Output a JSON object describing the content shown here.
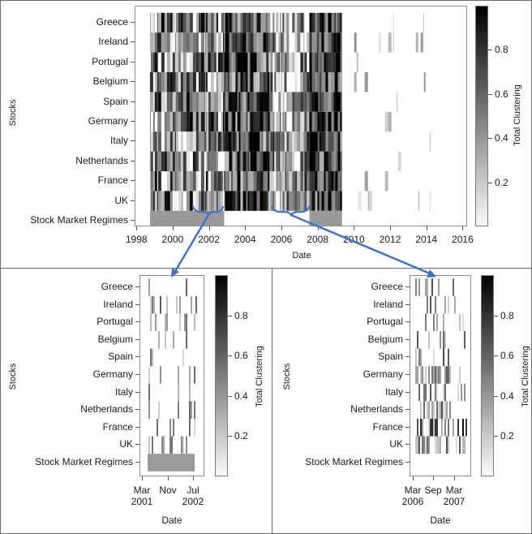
{
  "chart_data": [
    {
      "id": "main",
      "type": "heatmap",
      "title": "",
      "xlabel": "Date",
      "ylabel": "Stocks",
      "colorbar_label": "Total Clustering",
      "colorbar_ticks": [
        "0.8",
        "0.6",
        "0.4",
        "0.2"
      ],
      "colorbar_range": [
        0,
        1
      ],
      "xlim": [
        1998,
        2016
      ],
      "x_ticks": [
        "1998",
        "2000",
        "2002",
        "2004",
        "2006",
        "2008",
        "2010",
        "2012",
        "2014",
        "2016"
      ],
      "rows": [
        "Greece",
        "Ireland",
        "Portugal",
        "Belgium",
        "Spain",
        "Germany",
        "Italy",
        "Netherlands",
        "France",
        "UK",
        "Stock Market Regimes"
      ],
      "regimes": [
        {
          "start": 1998.7,
          "end": 2002.8,
          "value": 0.45
        },
        {
          "start": 2007.5,
          "end": 2009.3,
          "value": 0.45
        }
      ],
      "dense_periods": [
        {
          "start": 1998.7,
          "end": 2002.8,
          "intensity": 0.45
        },
        {
          "start": 2002.8,
          "end": 2005.3,
          "intensity": 0.7
        },
        {
          "start": 2005.3,
          "end": 2007.5,
          "intensity": 0.35
        },
        {
          "start": 2007.5,
          "end": 2009.3,
          "intensity": 0.8
        },
        {
          "start": 2009.3,
          "end": 2014.2,
          "intensity": 0.08
        }
      ],
      "highlights": [
        {
          "label": "zoom-1",
          "start": 2001.2,
          "end": 2002.5
        },
        {
          "label": "zoom-2",
          "start": 2005.4,
          "end": 2007.4
        }
      ]
    },
    {
      "id": "zoom-left",
      "type": "heatmap",
      "xlabel": "Date",
      "ylabel": "Stocks",
      "colorbar_label": "Total Clustering",
      "colorbar_ticks": [
        "0.8",
        "0.6",
        "0.4",
        "0.2"
      ],
      "x_ticks": [
        "Mar\n2001",
        "Nov",
        "Jul\n2002"
      ],
      "x_ticks_line1": [
        "Mar",
        "Nov",
        "Jul"
      ],
      "x_ticks_line2": [
        "2001",
        "",
        "2002"
      ],
      "rows": [
        "Greece",
        "Ireland",
        "Portugal",
        "Belgium",
        "Spain",
        "Germany",
        "Italy",
        "Netherlands",
        "France",
        "UK",
        "Stock Market Regimes"
      ],
      "regimes": [
        {
          "start": 0.1,
          "end": 1.0,
          "value": 0.45
        }
      ]
    },
    {
      "id": "zoom-right",
      "type": "heatmap",
      "xlabel": "Date",
      "ylabel": "Stocks",
      "colorbar_label": "Total Clustering",
      "colorbar_ticks": [
        "0.8",
        "0.6",
        "0.4",
        "0.2"
      ],
      "x_ticks_line1": [
        "Mar",
        "Sep",
        "Mar"
      ],
      "x_ticks_line2": [
        "2006",
        "",
        "2007"
      ],
      "rows": [
        "Greece",
        "Ireland",
        "Portugal",
        "Belgium",
        "Spain",
        "Germany",
        "Italy",
        "Netherlands",
        "France",
        "UK",
        "Stock Market Regimes"
      ],
      "regimes": []
    }
  ],
  "main": {
    "ylabel": "Stocks",
    "xlabel": "Date",
    "cbar_label": "Total Clustering",
    "rows": [
      "Greece",
      "Ireland",
      "Portugal",
      "Belgium",
      "Spain",
      "Germany",
      "Italy",
      "Netherlands",
      "France",
      "UK",
      "Stock Market Regimes"
    ],
    "xticks": [
      "1998",
      "2000",
      "2002",
      "2004",
      "2006",
      "2008",
      "2010",
      "2012",
      "2014",
      "2016"
    ],
    "cbar_ticks": [
      "0.8",
      "0.6",
      "0.4",
      "0.2"
    ]
  },
  "left": {
    "ylabel": "Stocks",
    "xlabel": "Date",
    "cbar_label": "Total Clustering",
    "rows": [
      "Greece",
      "Ireland",
      "Portugal",
      "Belgium",
      "Spain",
      "Germany",
      "Italy",
      "Netherlands",
      "France",
      "UK",
      "Stock Market Regimes"
    ],
    "xticks1": [
      "Mar",
      "Nov",
      "Jul"
    ],
    "xticks2": [
      "2001",
      "",
      "2002"
    ],
    "cbar_ticks": [
      "0.8",
      "0.6",
      "0.4",
      "0.2"
    ]
  },
  "right": {
    "ylabel": "Stocks",
    "xlabel": "Date",
    "cbar_label": "Total Clustering",
    "rows": [
      "Greece",
      "Ireland",
      "Portugal",
      "Belgium",
      "Spain",
      "Germany",
      "Italy",
      "Netherlands",
      "France",
      "UK",
      "Stock Market Regimes"
    ],
    "xticks1": [
      "Mar",
      "Sep",
      "Mar"
    ],
    "xticks2": [
      "2006",
      "",
      "2007"
    ],
    "cbar_ticks": [
      "0.8",
      "0.6",
      "0.4",
      "0.2"
    ]
  },
  "colors": {
    "arrow": "#4472c4",
    "regime": "#999999",
    "frame": "#6b6b6b"
  }
}
